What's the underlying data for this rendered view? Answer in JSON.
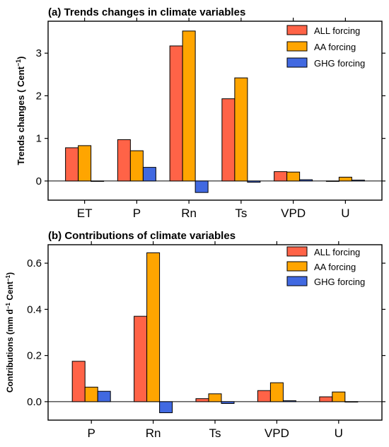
{
  "chart_data": [
    {
      "type": "bar",
      "title": "(a) Trends changes in climate variables",
      "ylabel_main": "Trends changes ( Cent",
      "ylabel_sup": "−1",
      "ylabel_close": ")",
      "xlabel": "",
      "categories": [
        "ET",
        "P",
        "Rn",
        "Ts",
        "VPD",
        "U"
      ],
      "series": [
        {
          "name": "ALL forcing",
          "color": "#FF6347",
          "values": [
            0.78,
            0.97,
            3.17,
            1.93,
            0.22,
            0.0
          ]
        },
        {
          "name": "AA forcing",
          "color": "#FFA500",
          "values": [
            0.83,
            0.71,
            3.52,
            2.42,
            0.21,
            0.09
          ]
        },
        {
          "name": "GHG forcing",
          "color": "#4169E1",
          "values": [
            0.0,
            0.32,
            -0.27,
            -0.03,
            0.03,
            0.02
          ]
        }
      ],
      "ylim": [
        -0.45,
        3.75
      ],
      "yticks": [
        0,
        1,
        2,
        3
      ],
      "legend": "top-right",
      "grid": false
    },
    {
      "type": "bar",
      "title": "(b) Contributions of climate variables",
      "ylabel_main": "Contributions (mm d",
      "ylabel_mid": " Cent",
      "ylabel_sup": "−1",
      "ylabel_close": ")",
      "xlabel": "",
      "categories": [
        "P",
        "Rn",
        "Ts",
        "VPD",
        "U"
      ],
      "series": [
        {
          "name": "ALL forcing",
          "color": "#FF6347",
          "values": [
            0.175,
            0.37,
            0.013,
            0.048,
            0.021
          ]
        },
        {
          "name": "AA forcing",
          "color": "#FFA500",
          "values": [
            0.063,
            0.645,
            0.034,
            0.082,
            0.042
          ]
        },
        {
          "name": "GHG forcing",
          "color": "#4169E1",
          "values": [
            0.045,
            -0.048,
            -0.008,
            0.004,
            0.0
          ]
        }
      ],
      "ylim": [
        -0.08,
        0.68
      ],
      "yticks": [
        0.0,
        0.2,
        0.4,
        0.6
      ],
      "ytick_labels": [
        "0.0",
        "0.2",
        "0.4",
        "0.6"
      ],
      "legend": "top-right",
      "grid": false
    }
  ]
}
